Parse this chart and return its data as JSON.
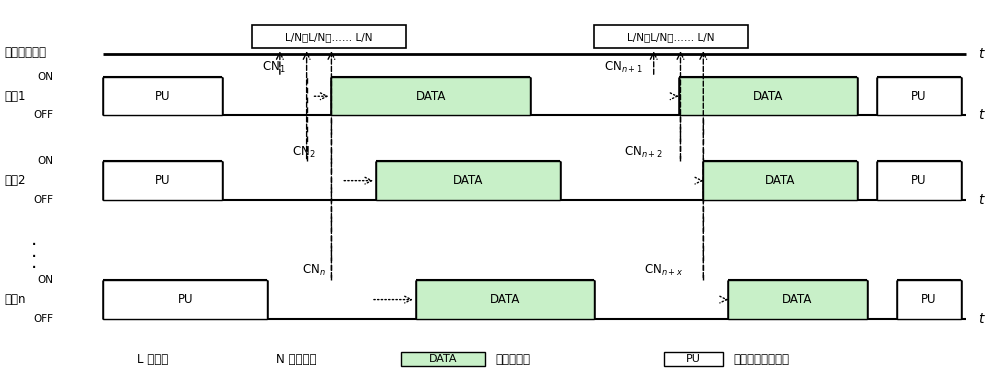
{
  "bg_color": "#ffffff",
  "line_color": "#000000",
  "data_box_color": "#c8f0c8",
  "fig_width": 10.0,
  "fig_height": 3.92,
  "ctrl_text1": "L/N；L/N；…… L/N",
  "ctrl_text2": "L/N；L/N；…… L/N",
  "label_ctrl": "公共控制信道",
  "label_ch1": "信道1",
  "label_ch2": "信道2",
  "label_chn": "信道n",
  "cn1": "CN$_1$",
  "cn2": "CN$_2$",
  "cnn": "CN$_n$",
  "cnn1": "CN$_{n+1}$",
  "cnn2": "CN$_{n+2}$",
  "cnnx": "CN$_{n+x}$",
  "legend_L": "L ：监听",
  "legend_N": "N ：协商包",
  "legend_DATA_text": "：发送数据",
  "legend_PU_text": "：主用户占用信道"
}
